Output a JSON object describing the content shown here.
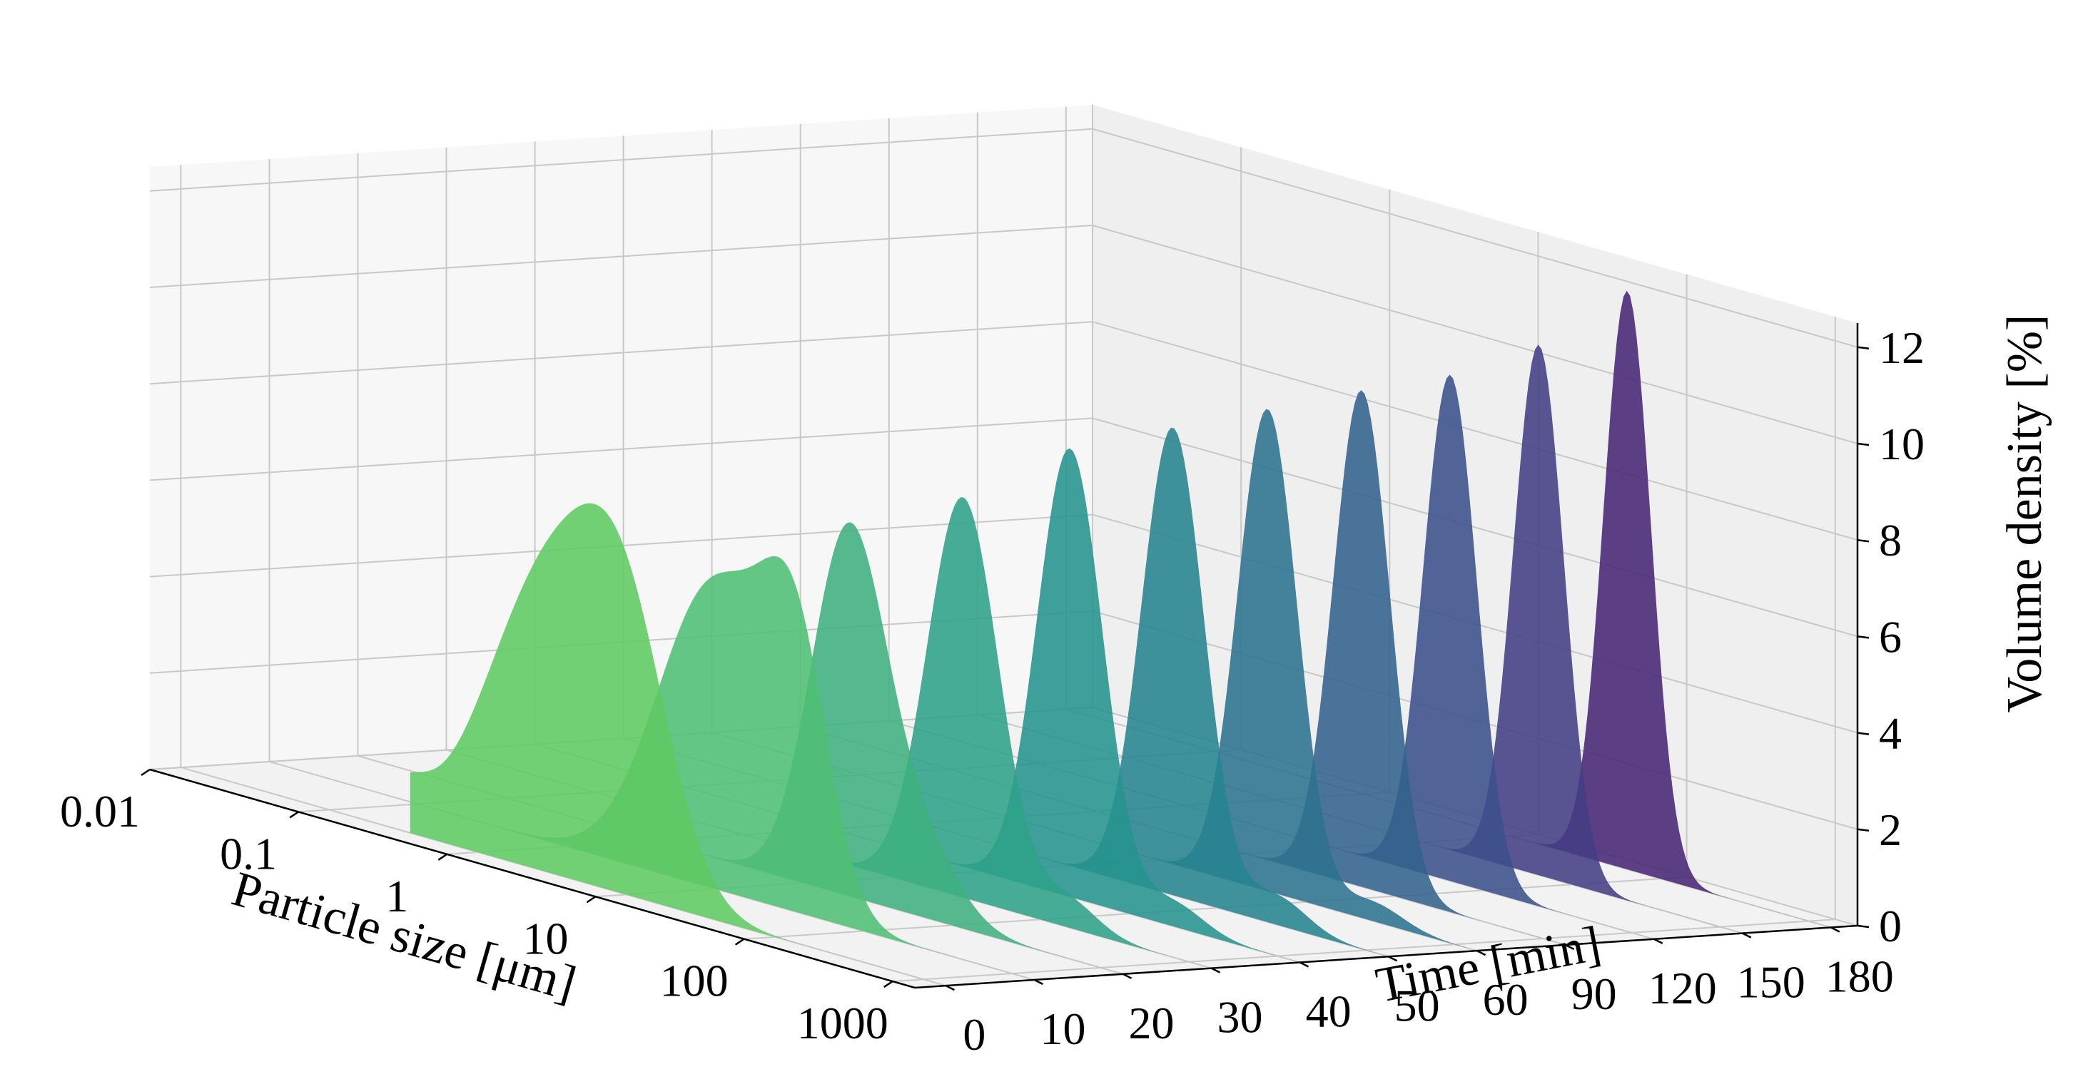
{
  "chart_data": {
    "type": "area",
    "projection": "3d",
    "title": "",
    "xlabel": "Particle size [μm]",
    "ylabel": "Time [min]",
    "zlabel": "Volume density [%]",
    "x_scale": "log",
    "x_ticks": [
      "0.01",
      "0.1",
      "1",
      "10",
      "100",
      "1000"
    ],
    "y_ticks": [
      "0",
      "10",
      "20",
      "30",
      "40",
      "50",
      "60",
      "90",
      "120",
      "150",
      "180"
    ],
    "z_ticks": [
      "0",
      "2",
      "4",
      "6",
      "8",
      "10",
      "12"
    ],
    "zlim": [
      0,
      12.5
    ],
    "grid": true,
    "colormap": "viridis",
    "series": [
      {
        "time": 0,
        "color": "#5ec962",
        "peaks": [
          {
            "center": 3.0,
            "height": 6.0,
            "width": 0.42
          },
          {
            "center": 10.0,
            "height": 4.3,
            "width": 0.3
          },
          {
            "center": 0.3,
            "height": 0.8,
            "width": 0.18
          }
        ]
      },
      {
        "time": 10,
        "color": "#4fbf74",
        "peaks": [
          {
            "center": 10.0,
            "height": 6.3,
            "width": 0.38
          },
          {
            "center": 35.0,
            "height": 4.5,
            "width": 0.22
          }
        ]
      },
      {
        "time": 20,
        "color": "#3fb17e",
        "peaks": [
          {
            "center": 20.0,
            "height": 7.5,
            "width": 0.25
          },
          {
            "center": 60.0,
            "height": 1.5,
            "width": 0.25
          }
        ]
      },
      {
        "time": 30,
        "color": "#2fa287",
        "peaks": [
          {
            "center": 30.0,
            "height": 8.3,
            "width": 0.24
          },
          {
            "center": 150.0,
            "height": 0.6,
            "width": 0.2
          }
        ]
      },
      {
        "time": 40,
        "color": "#25938d",
        "peaks": [
          {
            "center": 40.0,
            "height": 9.3,
            "width": 0.22
          },
          {
            "center": 200.0,
            "height": 0.5,
            "width": 0.2
          }
        ]
      },
      {
        "time": 50,
        "color": "#26838e",
        "peaks": [
          {
            "center": 50.0,
            "height": 9.7,
            "width": 0.21
          },
          {
            "center": 250.0,
            "height": 0.6,
            "width": 0.2
          }
        ]
      },
      {
        "time": 60,
        "color": "#2c728e",
        "peaks": [
          {
            "center": 55.0,
            "height": 10.0,
            "width": 0.2
          },
          {
            "center": 280.0,
            "height": 0.4,
            "width": 0.2
          }
        ]
      },
      {
        "time": 90,
        "color": "#33628d",
        "peaks": [
          {
            "center": 60.0,
            "height": 10.3,
            "width": 0.19
          }
        ]
      },
      {
        "time": 120,
        "color": "#3b518b",
        "peaks": [
          {
            "center": 60.0,
            "height": 10.5,
            "width": 0.18
          }
        ]
      },
      {
        "time": 150,
        "color": "#433d84",
        "peaks": [
          {
            "center": 60.0,
            "height": 11.0,
            "width": 0.17
          }
        ]
      },
      {
        "time": 180,
        "color": "#482576",
        "peaks": [
          {
            "center": 60.0,
            "height": 12.0,
            "width": 0.16
          }
        ]
      }
    ]
  }
}
